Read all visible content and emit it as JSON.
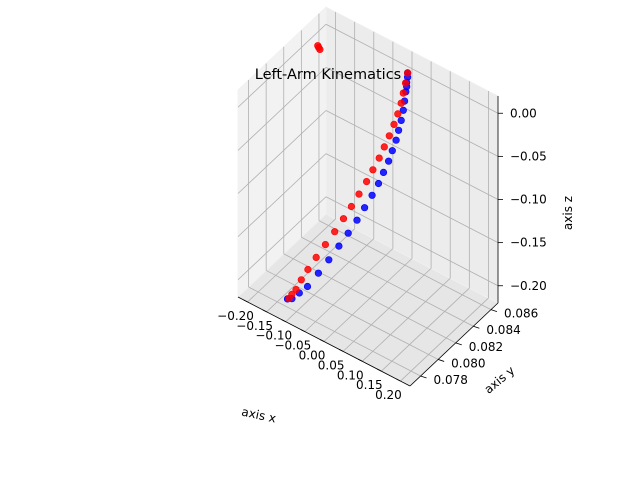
{
  "chart_data": {
    "type": "scatter",
    "projection": "3d",
    "title": "Left-Arm Kinematics",
    "xlabel": "axis x",
    "ylabel": "axis y",
    "zlabel": "axis z",
    "xlim": [
      -0.225,
      0.225
    ],
    "ylim": [
      0.0768,
      0.0868
    ],
    "zlim": [
      -0.22,
      0.02
    ],
    "x_ticks": [
      "−0.20",
      "−0.15",
      "−0.10",
      "−0.05",
      "0.00",
      "0.05",
      "0.10",
      "0.15",
      "0.20"
    ],
    "x_tick_values": [
      -0.2,
      -0.15,
      -0.1,
      -0.05,
      0.0,
      0.05,
      0.1,
      0.15,
      0.2
    ],
    "y_ticks": [
      "0.078",
      "0.080",
      "0.082",
      "0.084",
      "0.086"
    ],
    "y_tick_values": [
      0.078,
      0.08,
      0.082,
      0.084,
      0.086
    ],
    "z_ticks": [
      "0.00",
      "−0.05",
      "−0.10",
      "−0.15",
      "−0.20"
    ],
    "z_tick_values": [
      0.0,
      -0.05,
      -0.1,
      -0.15,
      -0.2
    ],
    "grid": true,
    "series": [
      {
        "color": "#0000ff",
        "points": [
          [
            0.0,
            0.0863,
            0.0
          ],
          [
            0.0,
            0.0863,
            -0.005
          ],
          [
            0.0,
            0.0862,
            -0.01
          ],
          [
            0.0,
            0.0862,
            -0.015
          ],
          [
            0.0,
            0.0861,
            -0.02
          ],
          [
            -0.001,
            0.086,
            -0.03
          ],
          [
            -0.002,
            0.0859,
            -0.04
          ],
          [
            -0.003,
            0.0857,
            -0.05
          ],
          [
            -0.005,
            0.0855,
            -0.06
          ],
          [
            -0.007,
            0.0853,
            -0.07
          ],
          [
            -0.01,
            0.085,
            -0.08
          ],
          [
            -0.013,
            0.0847,
            -0.09
          ],
          [
            -0.017,
            0.0843,
            -0.1
          ],
          [
            -0.021,
            0.0839,
            -0.11
          ],
          [
            -0.026,
            0.0834,
            -0.12
          ],
          [
            -0.032,
            0.0828,
            -0.13
          ],
          [
            -0.038,
            0.0822,
            -0.14
          ],
          [
            -0.045,
            0.0815,
            -0.15
          ],
          [
            -0.053,
            0.0808,
            -0.16
          ],
          [
            -0.061,
            0.08,
            -0.17
          ],
          [
            -0.07,
            0.0792,
            -0.18
          ],
          [
            -0.08,
            0.0784,
            -0.19
          ],
          [
            -0.09,
            0.0779,
            -0.195
          ],
          [
            -0.1,
            0.0775,
            -0.2
          ],
          [
            -0.107,
            0.0773,
            -0.2
          ]
        ]
      },
      {
        "color": "#ff0000",
        "points": [
          [
            0.0,
            0.0863,
            0.0
          ],
          [
            -0.001,
            0.0861,
            -0.01
          ],
          [
            -0.002,
            0.0859,
            -0.02
          ],
          [
            -0.003,
            0.0857,
            -0.03
          ],
          [
            -0.005,
            0.0854,
            -0.04
          ],
          [
            -0.008,
            0.0851,
            -0.05
          ],
          [
            -0.011,
            0.0847,
            -0.06
          ],
          [
            -0.015,
            0.0843,
            -0.07
          ],
          [
            -0.019,
            0.0839,
            -0.08
          ],
          [
            -0.024,
            0.0834,
            -0.09
          ],
          [
            -0.029,
            0.0829,
            -0.1
          ],
          [
            -0.035,
            0.0823,
            -0.11
          ],
          [
            -0.041,
            0.0817,
            -0.12
          ],
          [
            -0.048,
            0.0811,
            -0.13
          ],
          [
            -0.055,
            0.0804,
            -0.14
          ],
          [
            -0.063,
            0.0797,
            -0.15
          ],
          [
            -0.071,
            0.079,
            -0.16
          ],
          [
            -0.079,
            0.0784,
            -0.17
          ],
          [
            -0.087,
            0.078,
            -0.18
          ],
          [
            -0.094,
            0.0777,
            -0.19
          ],
          [
            -0.1,
            0.0775,
            -0.195
          ],
          [
            -0.105,
            0.0774,
            -0.2
          ],
          [
            -0.205,
            0.085,
            -0.003
          ],
          [
            -0.205,
            0.0851,
            -0.006
          ],
          [
            -0.204,
            0.0852,
            -0.009
          ]
        ]
      }
    ]
  }
}
